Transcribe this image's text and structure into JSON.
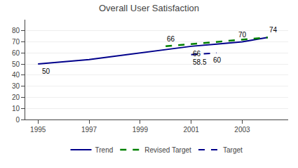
{
  "chart_data": {
    "type": "line",
    "title": "Overall User Satisfaction",
    "series": [
      {
        "name": "Trend",
        "color": "#00008B",
        "line_style": "solid",
        "x": [
          1995,
          1996,
          1997,
          1998,
          1999,
          2000,
          2001,
          2002,
          2003,
          2004
        ],
        "values": [
          50,
          52,
          54,
          57,
          60,
          63,
          66,
          68,
          70,
          74
        ]
      },
      {
        "name": "Revised Target",
        "color": "#008000",
        "line_style": "dashed",
        "x": [
          2000,
          2001,
          2002,
          2003,
          2004
        ],
        "values": [
          66,
          68,
          70,
          72,
          74
        ]
      },
      {
        "name": "Target",
        "color": "#00008B",
        "line_style": "dashed",
        "x": [
          2001,
          2002
        ],
        "values": [
          58.5,
          60
        ]
      }
    ],
    "annotations": [
      {
        "text": "50",
        "x": 1995.1,
        "y": 50,
        "position": "below"
      },
      {
        "text": "66",
        "x": 2000.0,
        "y": 66,
        "position": "above"
      },
      {
        "text": "66",
        "x": 2001.0,
        "y": 66,
        "position": "below"
      },
      {
        "text": "58.5",
        "x": 2001.0,
        "y": 58.5,
        "position": "below"
      },
      {
        "text": "70",
        "x": 2002.8,
        "y": 70,
        "position": "above"
      },
      {
        "text": "60",
        "x": 2001.8,
        "y": 60,
        "position": "below"
      },
      {
        "text": "74",
        "x": 2004.0,
        "y": 74,
        "position": "above"
      }
    ],
    "xlim": [
      1994.5,
      2004.8
    ],
    "ylim": [
      0,
      90
    ],
    "xticks": [
      1995,
      1997,
      1999,
      2001,
      2003
    ],
    "yticks": [
      0,
      10,
      20,
      30,
      40,
      50,
      60,
      70,
      80
    ],
    "grid": true,
    "legend": "bottom"
  }
}
